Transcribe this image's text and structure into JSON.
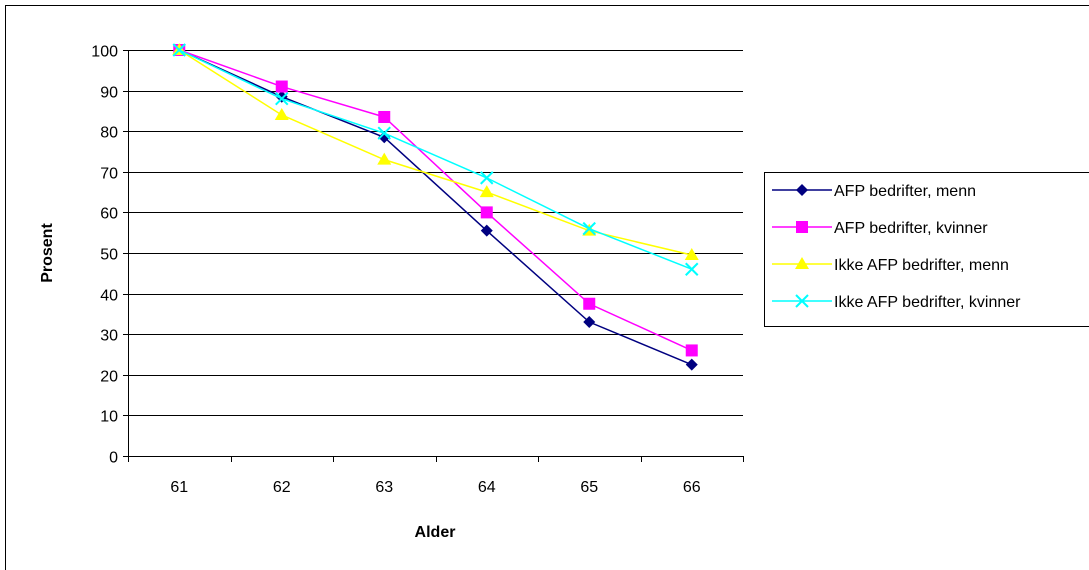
{
  "chart_data": {
    "type": "line",
    "title": "",
    "xlabel": "Alder",
    "ylabel": "Prosent",
    "categories": [
      "61",
      "62",
      "63",
      "64",
      "65",
      "66"
    ],
    "ylim": [
      0,
      100
    ],
    "yticks": [
      "0",
      "10",
      "20",
      "30",
      "40",
      "50",
      "60",
      "70",
      "80",
      "90",
      "100"
    ],
    "grid": "horizontal",
    "legend_position": "right",
    "series": [
      {
        "name": "AFP bedrifter, menn",
        "color": "#000080",
        "marker": "diamond",
        "values": [
          100,
          88.5,
          78.5,
          55.5,
          33,
          22.5
        ]
      },
      {
        "name": "AFP bedrifter, kvinner",
        "color": "#FF00FF",
        "marker": "square",
        "values": [
          100,
          91,
          83.5,
          60,
          37.5,
          26
        ]
      },
      {
        "name": "Ikke AFP bedrifter, menn",
        "color": "#FFFF00",
        "marker": "triangle",
        "values": [
          100,
          84,
          73,
          65,
          55.5,
          49.5
        ]
      },
      {
        "name": "Ikke AFP bedrifter, kvinner",
        "color": "#00FFFF",
        "marker": "x",
        "values": [
          100,
          88,
          79.5,
          68.5,
          56,
          46
        ]
      }
    ]
  }
}
